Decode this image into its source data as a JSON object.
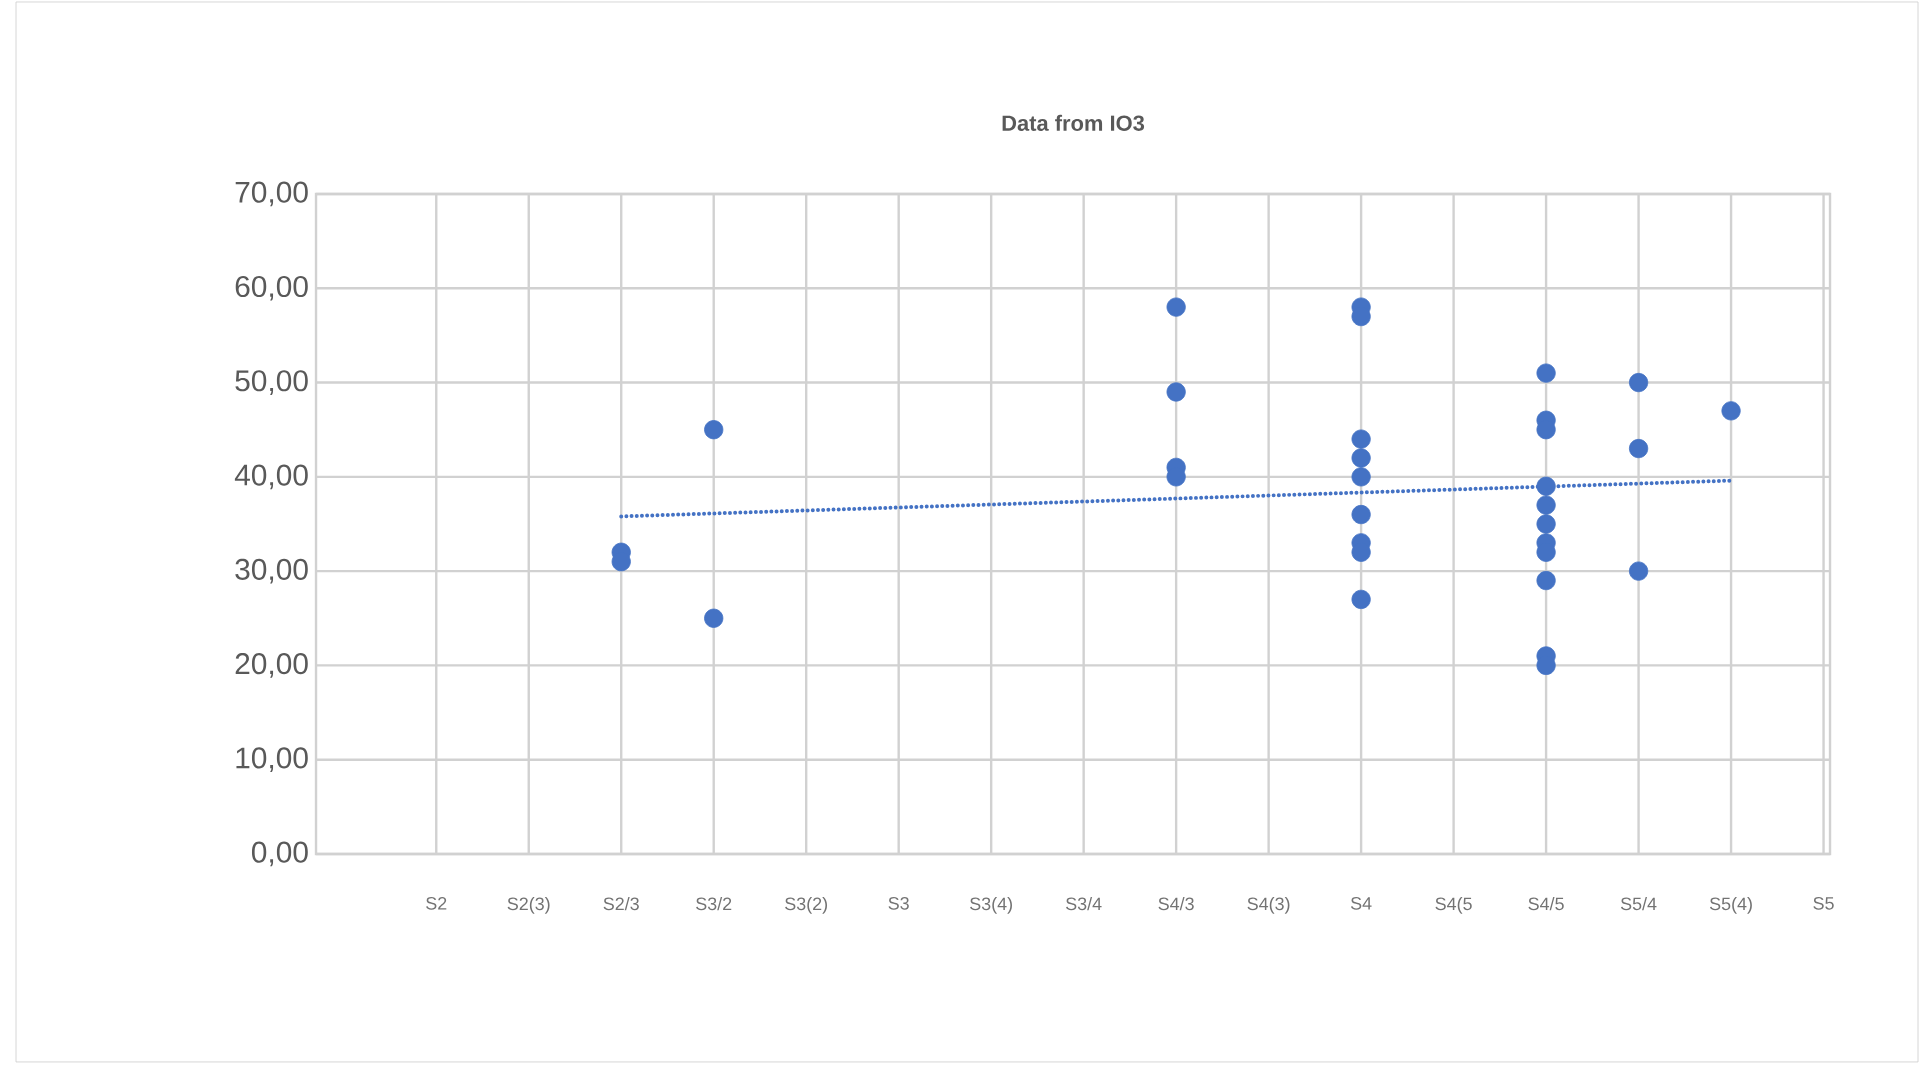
{
  "chart_data": {
    "type": "scatter",
    "title": "Data from IO3",
    "categories": [
      "S2",
      "S2(3)",
      "S2/3",
      "S3/2",
      "S3(2)",
      "S3",
      "S3(4)",
      "S3/4",
      "S4/3",
      "S4(3)",
      "S4",
      "S4(5",
      "S4/5",
      "S5/4",
      "S5(4)",
      "S5"
    ],
    "ylim": [
      0,
      70
    ],
    "yticks": [
      {
        "value": 0,
        "label": "0,00"
      },
      {
        "value": 10,
        "label": "10,00"
      },
      {
        "value": 20,
        "label": "20,00"
      },
      {
        "value": 30,
        "label": "30,00"
      },
      {
        "value": 40,
        "label": "40,00"
      },
      {
        "value": 50,
        "label": "50,00"
      },
      {
        "value": 60,
        "label": "60,00"
      },
      {
        "value": 70,
        "label": "70,00"
      }
    ],
    "grid": true,
    "series": [
      {
        "color": "#4472c4",
        "marker": "circle",
        "x": [
          "S2/3",
          "S2/3",
          "S3/2",
          "S3/2",
          "S4/3",
          "S4/3",
          "S4/3",
          "S4/3",
          "S4",
          "S4",
          "S4",
          "S4",
          "S4",
          "S4",
          "S4",
          "S4",
          "S4",
          "S4/5",
          "S4/5",
          "S4/5",
          "S4/5",
          "S4/5",
          "S4/5",
          "S4/5",
          "S4/5",
          "S4/5",
          "S4/5",
          "S4/5",
          "S5/4",
          "S5/4",
          "S5/4",
          "S5(4)"
        ],
        "values": [
          32,
          31,
          45,
          25,
          58,
          49,
          41,
          40,
          58,
          57,
          44,
          42,
          40,
          36,
          33,
          32,
          27,
          51,
          46,
          45,
          39,
          37,
          35,
          33,
          32,
          29,
          21,
          20,
          50,
          43,
          30,
          47
        ]
      },
      {
        "type": "line",
        "color": "#4472c4",
        "marker": "none",
        "line_style": "dotted",
        "x": [
          "S2/3",
          "S5(4)"
        ],
        "values": [
          35.8,
          39.6
        ]
      }
    ]
  }
}
